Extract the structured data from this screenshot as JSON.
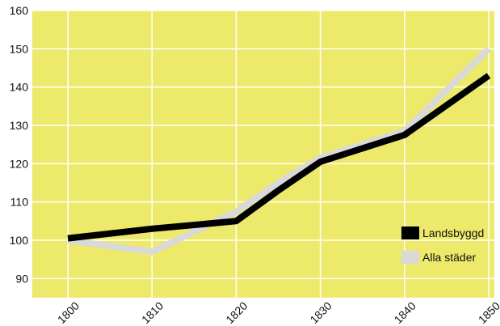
{
  "chart_data": {
    "type": "line",
    "x": [
      1800,
      1810,
      1820,
      1825,
      1830,
      1840,
      1850
    ],
    "series": [
      {
        "name": "Landsbyggd",
        "values": [
          100.5,
          103,
          105,
          113,
          120.5,
          127.5,
          143
        ],
        "color": "#000000"
      },
      {
        "name": "Alla städer",
        "values": [
          100,
          97,
          107.5,
          115,
          121.5,
          128.5,
          150
        ],
        "color": "#d9d9d9"
      }
    ],
    "xticks": [
      "1800",
      "1810",
      "1820",
      "1830",
      "1840",
      "1850"
    ],
    "yticks": [
      "90",
      "100",
      "110",
      "120",
      "130",
      "140",
      "150",
      "160"
    ],
    "xlim": [
      1800,
      1850
    ],
    "ylim": [
      85,
      160
    ],
    "grid": true,
    "background": "#ede96b",
    "grid_color": "#ffffff",
    "legend_position": "right"
  }
}
